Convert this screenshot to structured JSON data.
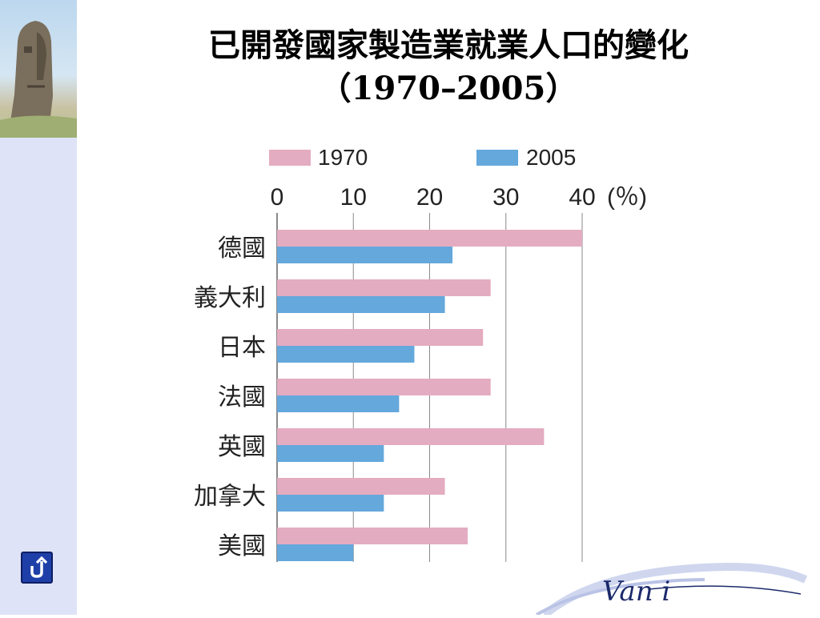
{
  "slide": {
    "title_line1": "已開發國家製造業就業人口的變化",
    "title_line2": "（1970–2005）",
    "brand_text": "Van i",
    "back_icon": "u-turn-arrow-icon"
  },
  "colors": {
    "series_1970": "#e4acc0",
    "series_2005": "#64a8dc",
    "grid": "#8a8a8a",
    "left_band": "#dfe3f7"
  },
  "chart_data": {
    "type": "bar",
    "orientation": "horizontal",
    "unit_label": "(％)",
    "categories": [
      "德國",
      "義大利",
      "日本",
      "法國",
      "英國",
      "加拿大",
      "美國"
    ],
    "series": [
      {
        "name": "1970",
        "color": "#e4acc0",
        "values": [
          40,
          28,
          27,
          28,
          35,
          22,
          25
        ]
      },
      {
        "name": "2005",
        "color": "#64a8dc",
        "values": [
          23,
          22,
          18,
          16,
          14,
          14,
          10
        ]
      }
    ],
    "xlim": [
      0,
      40
    ],
    "ticks": [
      0,
      10,
      20,
      30,
      40
    ],
    "grid": true,
    "legend_position": "top"
  }
}
